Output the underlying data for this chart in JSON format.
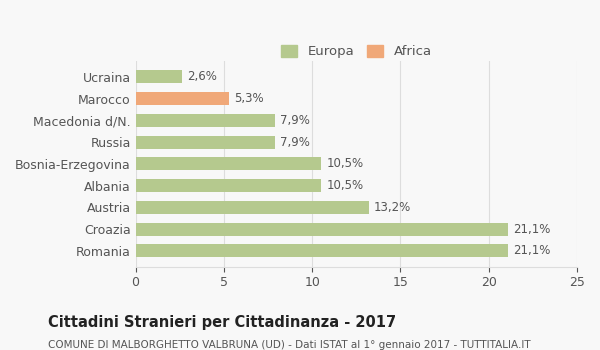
{
  "categories": [
    "Romania",
    "Croazia",
    "Austria",
    "Albania",
    "Bosnia-Erzegovina",
    "Russia",
    "Macedonia d/N.",
    "Marocco",
    "Ucraina"
  ],
  "values": [
    21.1,
    21.1,
    13.2,
    10.5,
    10.5,
    7.9,
    7.9,
    5.3,
    2.6
  ],
  "labels": [
    "21,1%",
    "21,1%",
    "13,2%",
    "10,5%",
    "10,5%",
    "7,9%",
    "7,9%",
    "5,3%",
    "2,6%"
  ],
  "colors": [
    "#b5c98e",
    "#b5c98e",
    "#b5c98e",
    "#b5c98e",
    "#b5c98e",
    "#b5c98e",
    "#b5c98e",
    "#f0a878",
    "#b5c98e"
  ],
  "continent": [
    "Europa",
    "Europa",
    "Europa",
    "Europa",
    "Europa",
    "Europa",
    "Europa",
    "Africa",
    "Europa"
  ],
  "europa_color": "#b5c98e",
  "africa_color": "#f0a878",
  "xlim": [
    0,
    25
  ],
  "xticks": [
    0,
    5,
    10,
    15,
    20,
    25
  ],
  "title": "Cittadini Stranieri per Cittadinanza - 2017",
  "subtitle": "COMUNE DI MALBORGHETTO VALBRUNA (UD) - Dati ISTAT al 1° gennaio 2017 - TUTTITALIA.IT",
  "background_color": "#f8f8f8",
  "bar_height": 0.6,
  "grid_color": "#dddddd",
  "text_color": "#555555",
  "title_color": "#222222",
  "subtitle_color": "#555555"
}
